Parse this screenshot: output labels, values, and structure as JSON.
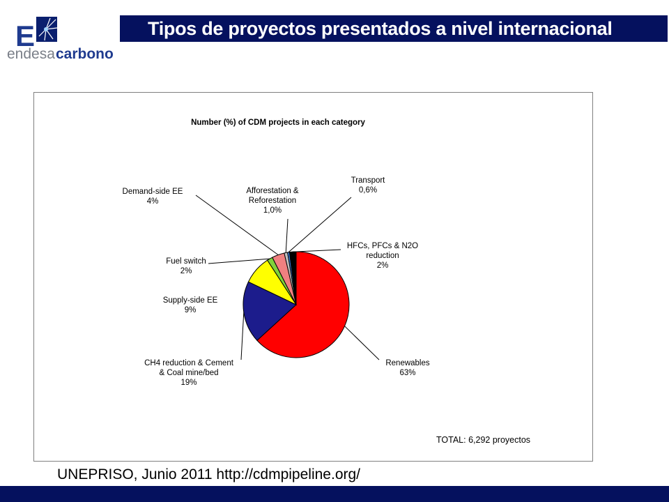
{
  "header": {
    "title": "Tipos de proyectos presentados  a nivel internacional",
    "logo": {
      "letter": "E",
      "word1": "endesa",
      "word2": "carbono"
    }
  },
  "colors": {
    "brand_navy": "#05115e",
    "logo_blue": "#1f3b8f",
    "logo_gray": "#7a7f88"
  },
  "chart_data": {
    "type": "pie",
    "title": "Number (%) of CDM projects in each category",
    "slices": [
      {
        "id": "renewables",
        "label_lines": [
          "Renewables",
          "63%"
        ],
        "value": 62.9,
        "color": "#ff0000"
      },
      {
        "id": "ch4",
        "label_lines": [
          "CH4 reduction & Cement",
          "& Coal mine/bed",
          "19%"
        ],
        "value": 18.8,
        "color": "#1c1c8c"
      },
      {
        "id": "supply-ee",
        "label_lines": [
          "Supply-side EE",
          "9%"
        ],
        "value": 8.7,
        "color": "#ffff00"
      },
      {
        "id": "fuel-switch",
        "label_lines": [
          "Fuel switch",
          "2%"
        ],
        "value": 1.7,
        "color": "#7fd13b"
      },
      {
        "id": "demand-ee",
        "label_lines": [
          "Demand-side EE",
          "4%"
        ],
        "value": 3.8,
        "color": "#f08080"
      },
      {
        "id": "afforestation",
        "label_lines": [
          "Afforestation &",
          "Reforestation",
          "1,0%"
        ],
        "value": 1.0,
        "color": "#c0c0c0"
      },
      {
        "id": "transport",
        "label_lines": [
          "Transport",
          "0,6%"
        ],
        "value": 0.6,
        "color": "#3a7ad8"
      },
      {
        "id": "hfcs",
        "label_lines": [
          "HFCs, PFCs & N2O",
          "reduction",
          "2%"
        ],
        "value": 2.0,
        "color": "#000000"
      }
    ],
    "start_angle_deg": 0,
    "direction": "clockwise",
    "total_note": "TOTAL: 6,292 proyectos"
  },
  "source": "UNEPRISO, Junio 2011 http://cdmpipeline.org/"
}
